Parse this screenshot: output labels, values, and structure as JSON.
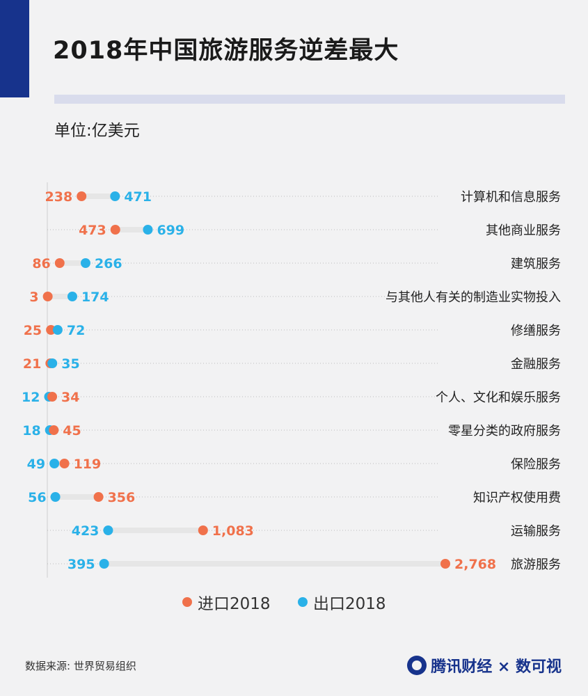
{
  "title": "2018年中国旅游服务逆差最大",
  "unit": "单位:亿美元",
  "source": "数据来源: 世界贸易组织",
  "brand": "腾讯财经 × 数可视",
  "colors": {
    "import": "#f0714b",
    "export": "#2ab1e8",
    "accent": "#17338c",
    "track": "#e6e6e6"
  },
  "chart_data": {
    "type": "dumbbell",
    "categories": [
      "计算机和信息服务",
      "其他商业服务",
      "建筑服务",
      "与其他人有关的制造业实物投入",
      "修缮服务",
      "金融服务",
      "个人、文化和娱乐服务",
      "零星分类的政府服务",
      "保险服务",
      "知识产权使用费",
      "运输服务",
      "旅游服务"
    ],
    "series": [
      {
        "name": "进口2018",
        "color": "#f0714b",
        "values": [
          238,
          473,
          86,
          3,
          25,
          21,
          34,
          45,
          119,
          356,
          1083,
          2768
        ],
        "labels": [
          "238",
          "473",
          "86",
          "3",
          "25",
          "21",
          "34",
          "45",
          "119",
          "356",
          "1,083",
          "2,768"
        ]
      },
      {
        "name": "出口2018",
        "color": "#2ab1e8",
        "values": [
          471,
          699,
          266,
          174,
          72,
          35,
          12,
          18,
          49,
          56,
          423,
          395
        ],
        "labels": [
          "471",
          "699",
          "266",
          "174",
          "72",
          "35",
          "12",
          "18",
          "49",
          "56",
          "423",
          "395"
        ]
      }
    ],
    "legend": "bottom"
  }
}
